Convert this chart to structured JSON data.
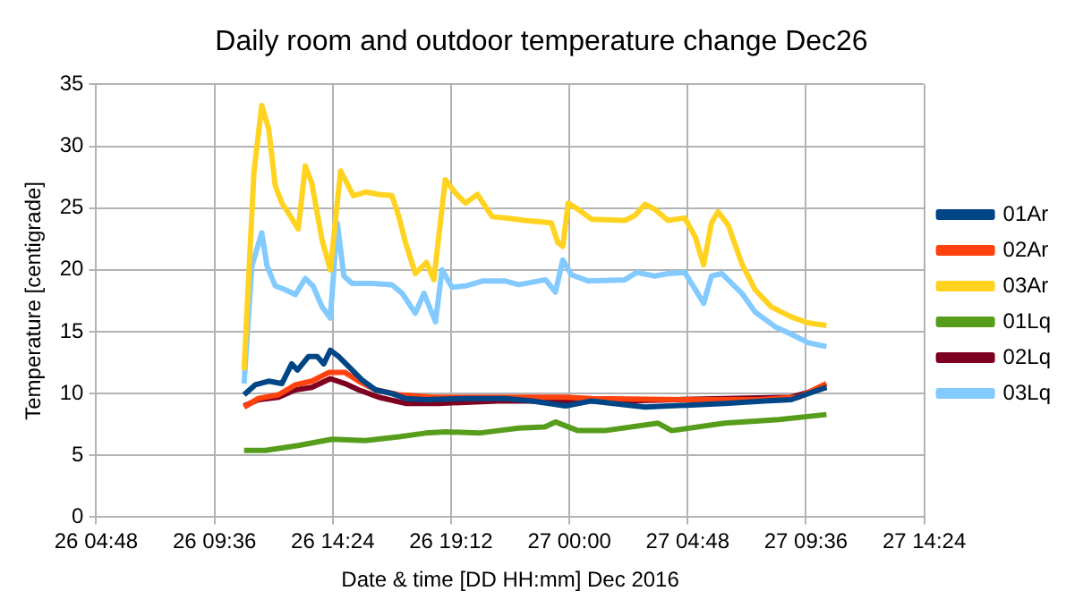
{
  "chart_data": {
    "type": "line",
    "title": "Daily room and outdoor temperature change Dec26",
    "xlabel": "Date & time [DD HH:mm] Dec 2016",
    "ylabel": "Temperature [centigrade]",
    "xlim": [
      "2016-12-26T04:48",
      "2016-12-27T14:24"
    ],
    "xticks": [
      {
        "value": "2016-12-26T04:48",
        "label": "26 04:48"
      },
      {
        "value": "2016-12-26T09:36",
        "label": "26 09:36"
      },
      {
        "value": "2016-12-26T14:24",
        "label": "26 14:24"
      },
      {
        "value": "2016-12-26T19:12",
        "label": "26 19:12"
      },
      {
        "value": "2016-12-27T00:00",
        "label": "27 00:00"
      },
      {
        "value": "2016-12-27T04:48",
        "label": "27 04:48"
      },
      {
        "value": "2016-12-27T09:36",
        "label": "27 09:36"
      },
      {
        "value": "2016-12-27T14:24",
        "label": "27 14:24"
      }
    ],
    "ylim": [
      0,
      35
    ],
    "yticks": [
      0,
      5,
      10,
      15,
      20,
      25,
      30,
      35
    ],
    "grid": true,
    "legend": "right",
    "marker": "none",
    "line_style": "solid",
    "series": [
      {
        "name": "01Ar",
        "color": "#004586",
        "x": [
          "2016-12-26T10:48",
          "2016-12-26T11:15",
          "2016-12-26T11:48",
          "2016-12-26T12:20",
          "2016-12-26T12:44",
          "2016-12-26T12:58",
          "2016-12-26T13:25",
          "2016-12-26T13:46",
          "2016-12-26T14:02",
          "2016-12-26T14:18",
          "2016-12-26T14:38",
          "2016-12-26T15:02",
          "2016-12-26T15:35",
          "2016-12-26T16:08",
          "2016-12-26T16:48",
          "2016-12-26T17:21",
          "2016-12-26T18:10",
          "2016-12-26T19:47",
          "2016-12-26T21:24",
          "2016-12-26T22:30",
          "2016-12-26T23:51",
          "2016-12-27T00:54",
          "2016-12-27T03:04",
          "2016-12-27T06:18",
          "2016-12-27T07:54",
          "2016-12-27T09:00",
          "2016-12-27T09:34",
          "2016-12-27T10:26"
        ],
        "values": [
          9.9,
          10.7,
          11.0,
          10.8,
          12.4,
          11.9,
          13.0,
          13.0,
          12.4,
          13.5,
          13.0,
          12.2,
          11.1,
          10.3,
          10.0,
          9.6,
          9.5,
          9.6,
          9.6,
          9.4,
          9.0,
          9.4,
          8.9,
          9.2,
          9.4,
          9.5,
          9.9,
          10.5
        ]
      },
      {
        "name": "02Ar",
        "color": "#ff420e",
        "x": [
          "2016-12-26T10:48",
          "2016-12-26T11:23",
          "2016-12-26T12:12",
          "2016-12-26T12:53",
          "2016-12-26T13:33",
          "2016-12-26T14:14",
          "2016-12-26T14:54",
          "2016-12-26T15:27",
          "2016-12-26T16:08",
          "2016-12-26T17:05",
          "2016-12-26T18:26",
          "2016-12-26T21:06",
          "2016-12-26T23:51",
          "2016-12-27T00:54",
          "2016-12-27T04:58",
          "2016-12-27T07:40",
          "2016-12-27T09:18",
          "2016-12-27T10:26"
        ],
        "values": [
          8.9,
          9.6,
          9.9,
          10.7,
          11.0,
          11.7,
          11.7,
          11.0,
          10.3,
          9.9,
          9.7,
          9.7,
          9.7,
          9.6,
          9.5,
          9.5,
          9.7,
          10.8
        ]
      },
      {
        "name": "03Ar",
        "color": "#ffd320",
        "x": [
          "2016-12-26T10:48",
          "2016-12-26T11:12",
          "2016-12-26T11:31",
          "2016-12-26T11:48",
          "2016-12-26T12:04",
          "2016-12-26T12:20",
          "2016-12-26T12:36",
          "2016-12-26T13:00",
          "2016-12-26T13:17",
          "2016-12-26T13:33",
          "2016-12-26T13:58",
          "2016-12-26T14:18",
          "2016-12-26T14:43",
          "2016-12-26T15:14",
          "2016-12-26T15:46",
          "2016-12-26T16:16",
          "2016-12-26T16:48",
          "2016-12-26T17:05",
          "2016-12-26T17:21",
          "2016-12-26T17:45",
          "2016-12-26T18:12",
          "2016-12-26T18:30",
          "2016-12-26T18:58",
          "2016-12-26T19:23",
          "2016-12-26T19:47",
          "2016-12-26T20:16",
          "2016-12-26T20:52",
          "2016-12-26T21:24",
          "2016-12-26T22:12",
          "2016-12-26T23:16",
          "2016-12-26T23:32",
          "2016-12-26T23:44",
          "2016-12-26T23:57",
          "2016-12-27T00:21",
          "2016-12-27T00:54",
          "2016-12-27T02:15",
          "2016-12-27T02:40",
          "2016-12-27T03:04",
          "2016-12-27T03:28",
          "2016-12-27T04:00",
          "2016-12-27T04:41",
          "2016-12-27T05:06",
          "2016-12-27T05:27",
          "2016-12-27T05:46",
          "2016-12-27T06:02",
          "2016-12-27T06:27",
          "2016-12-27T07:00",
          "2016-12-27T07:32",
          "2016-12-27T08:12",
          "2016-12-27T09:00",
          "2016-12-27T09:42",
          "2016-12-27T10:26"
        ],
        "values": [
          11.9,
          27.9,
          33.3,
          31.4,
          26.8,
          25.4,
          24.6,
          23.3,
          28.4,
          27.0,
          22.4,
          20.0,
          28.0,
          26.0,
          26.3,
          26.1,
          26.0,
          24.3,
          22.2,
          19.7,
          20.6,
          19.2,
          27.3,
          26.2,
          25.4,
          26.1,
          24.3,
          24.2,
          24.0,
          23.8,
          22.2,
          21.9,
          25.4,
          24.9,
          24.1,
          24.0,
          24.4,
          25.3,
          24.9,
          24.0,
          24.2,
          22.7,
          20.4,
          23.8,
          24.7,
          23.6,
          20.5,
          18.4,
          17.0,
          16.2,
          15.7,
          15.5
        ]
      },
      {
        "name": "01Lq",
        "color": "#579d1c",
        "x": [
          "2016-12-26T10:48",
          "2016-12-26T11:40",
          "2016-12-26T13:00",
          "2016-12-26T14:22",
          "2016-12-26T15:43",
          "2016-12-26T17:05",
          "2016-12-26T18:10",
          "2016-12-26T18:58",
          "2016-12-26T20:20",
          "2016-12-26T21:57",
          "2016-12-26T23:00",
          "2016-12-26T23:26",
          "2016-12-27T00:21",
          "2016-12-27T01:26",
          "2016-12-27T03:36",
          "2016-12-27T04:09",
          "2016-12-27T06:18",
          "2016-12-27T08:30",
          "2016-12-27T10:26"
        ],
        "values": [
          5.4,
          5.4,
          5.8,
          6.3,
          6.2,
          6.5,
          6.8,
          6.9,
          6.8,
          7.2,
          7.3,
          7.7,
          7.0,
          7.0,
          7.6,
          7.0,
          7.6,
          7.9,
          8.3
        ]
      },
      {
        "name": "02Lq",
        "color": "#7e0021",
        "x": [
          "2016-12-26T10:48",
          "2016-12-26T11:23",
          "2016-12-26T12:12",
          "2016-12-26T12:53",
          "2016-12-26T13:33",
          "2016-12-26T14:18",
          "2016-12-26T14:54",
          "2016-12-26T15:27",
          "2016-12-26T16:16",
          "2016-12-26T17:21",
          "2016-12-26T18:42",
          "2016-12-26T21:06",
          "2016-12-26T23:51",
          "2016-12-27T02:15",
          "2016-12-27T06:18",
          "2016-12-27T09:00",
          "2016-12-27T10:26"
        ],
        "values": [
          9.0,
          9.5,
          9.7,
          10.3,
          10.5,
          11.2,
          10.8,
          10.3,
          9.7,
          9.2,
          9.2,
          9.4,
          9.4,
          9.4,
          9.6,
          9.7,
          10.5
        ]
      },
      {
        "name": "03Lq",
        "color": "#83caff",
        "x": [
          "2016-12-26T10:48",
          "2016-12-26T11:07",
          "2016-12-26T11:31",
          "2016-12-26T11:44",
          "2016-12-26T12:04",
          "2016-12-26T12:28",
          "2016-12-26T12:53",
          "2016-12-26T13:17",
          "2016-12-26T13:36",
          "2016-12-26T13:58",
          "2016-12-26T14:18",
          "2016-12-26T14:35",
          "2016-12-26T14:51",
          "2016-12-26T15:11",
          "2016-12-26T15:59",
          "2016-12-26T16:48",
          "2016-12-26T17:13",
          "2016-12-26T17:45",
          "2016-12-26T18:06",
          "2016-12-26T18:34",
          "2016-12-26T18:50",
          "2016-12-26T19:14",
          "2016-12-26T19:47",
          "2016-12-26T20:28",
          "2016-12-26T21:24",
          "2016-12-26T21:57",
          "2016-12-26T23:02",
          "2016-12-26T23:26",
          "2016-12-26T23:44",
          "2016-12-27T00:05",
          "2016-12-27T00:46",
          "2016-12-27T02:15",
          "2016-12-27T02:44",
          "2016-12-27T03:28",
          "2016-12-27T04:00",
          "2016-12-27T04:41",
          "2016-12-27T05:27",
          "2016-12-27T05:46",
          "2016-12-27T06:11",
          "2016-12-27T07:00",
          "2016-12-27T07:32",
          "2016-12-27T08:21",
          "2016-12-27T09:00",
          "2016-12-27T09:42",
          "2016-12-27T10:26"
        ],
        "values": [
          10.8,
          20.3,
          23.0,
          20.3,
          18.7,
          18.4,
          18.0,
          19.3,
          18.7,
          17.0,
          16.1,
          23.8,
          19.5,
          18.9,
          18.9,
          18.8,
          18.1,
          16.5,
          18.1,
          15.8,
          20.0,
          18.6,
          18.7,
          19.1,
          19.1,
          18.8,
          19.2,
          18.2,
          20.8,
          19.6,
          19.1,
          19.2,
          19.8,
          19.5,
          19.7,
          19.8,
          17.3,
          19.5,
          19.7,
          18.1,
          16.6,
          15.4,
          14.8,
          14.1,
          13.8
        ]
      }
    ]
  }
}
